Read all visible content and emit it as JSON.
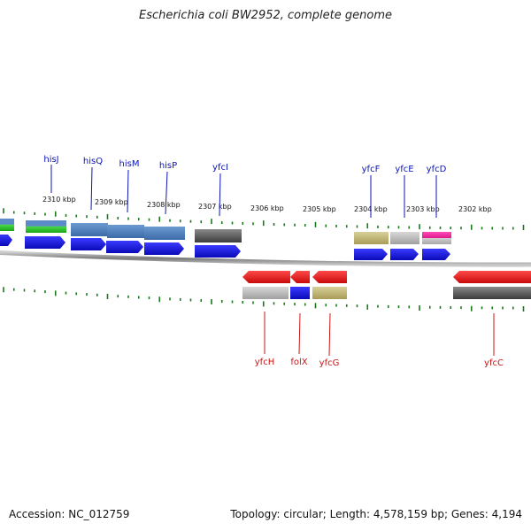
{
  "title": "Escherichia coli BW2952, complete genome",
  "footer": {
    "accession": "Accession: NC_012759",
    "summary": "Topology: circular; Length: 4,578,159 bp; Genes: 4,194"
  },
  "colors": {
    "forward_label": "#0a14b4",
    "reverse_label": "#c81414",
    "cds": "#1a1ae6",
    "cds_reverse": "#e81515",
    "tick": "#1a7a1a",
    "backbone": "#888888"
  },
  "scale": {
    "ticks": [
      {
        "label": "2310 kbp",
        "kbp": 2310
      },
      {
        "label": "2309 kbp",
        "kbp": 2309
      },
      {
        "label": "2308 kbp",
        "kbp": 2308
      },
      {
        "label": "2307 kbp",
        "kbp": 2307
      },
      {
        "label": "2306 kbp",
        "kbp": 2306
      },
      {
        "label": "2305 kbp",
        "kbp": 2305
      },
      {
        "label": "2304 kbp",
        "kbp": 2304
      },
      {
        "label": "2303 kbp",
        "kbp": 2303
      },
      {
        "label": "2302 kbp",
        "kbp": 2302
      }
    ]
  },
  "genes_forward": [
    {
      "name": "hisJ"
    },
    {
      "name": "hisQ"
    },
    {
      "name": "hisM"
    },
    {
      "name": "hisP"
    },
    {
      "name": "yfcI"
    },
    {
      "name": "yfcF"
    },
    {
      "name": "yfcE"
    },
    {
      "name": "yfcD"
    }
  ],
  "genes_reverse": [
    {
      "name": "yfcH"
    },
    {
      "name": "folX"
    },
    {
      "name": "yfcG"
    },
    {
      "name": "yfcC"
    }
  ]
}
